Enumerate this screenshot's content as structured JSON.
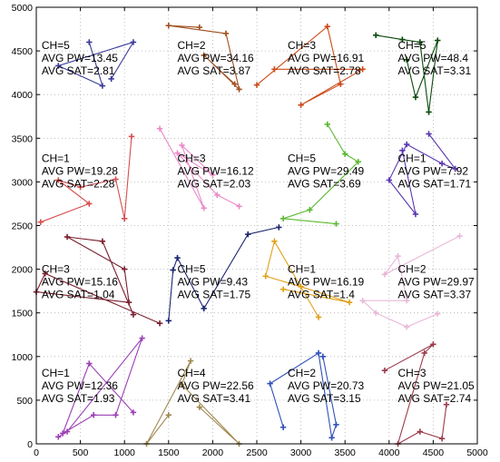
{
  "chart_data": {
    "type": "line",
    "title": "",
    "xlabel": "",
    "ylabel": "",
    "xlim": [
      0,
      5000
    ],
    "ylim": [
      0,
      5000
    ],
    "xticks": [
      "0",
      "500",
      "1000",
      "1500",
      "2000",
      "2500",
      "3000",
      "3500",
      "4000",
      "4500",
      "5000"
    ],
    "yticks": [
      "0",
      "500",
      "1000",
      "1500",
      "2000",
      "2500",
      "3000",
      "3500",
      "4000",
      "4500",
      "5000"
    ],
    "grid": "dotted",
    "marker": "plus",
    "series": [
      {
        "color": "#3a3a9a",
        "x": [
          850,
          1100,
          250,
          750,
          600
        ],
        "y": [
          4180,
          4600,
          4330,
          4100,
          4600
        ]
      },
      {
        "color": "#d64e4e",
        "x": [
          1080,
          1000,
          900,
          500,
          250,
          600,
          50
        ],
        "y": [
          3520,
          2580,
          3030,
          2940,
          3020,
          2750,
          2540
        ]
      },
      {
        "color": "#7a1f2e",
        "x": [
          1100,
          750,
          350,
          1000,
          1050,
          0,
          100,
          1400
        ],
        "y": [
          1480,
          2320,
          2370,
          2000,
          1620,
          1740,
          1950,
          1380
        ]
      },
      {
        "color": "#9b3fb5",
        "x": [
          250,
          350,
          1200,
          900,
          650,
          300,
          600,
          1100
        ],
        "y": [
          80,
          140,
          1210,
          330,
          330,
          120,
          920,
          360
        ]
      },
      {
        "color": "#a05020",
        "x": [
          1850,
          1500,
          2150,
          2300,
          1900,
          2250
        ],
        "y": [
          4770,
          4790,
          4700,
          4060,
          4450,
          4120
        ]
      },
      {
        "color": "#e88cc8",
        "x": [
          1400,
          1900,
          1650,
          2000,
          1600,
          2050,
          2300
        ],
        "y": [
          3610,
          2700,
          3420,
          3080,
          3330,
          2850,
          2720
        ]
      },
      {
        "color": "#1a2470",
        "x": [
          1500,
          1550,
          1600,
          1900,
          2400,
          2750
        ],
        "y": [
          1410,
          1990,
          2130,
          1550,
          2400,
          2480
        ]
      },
      {
        "color": "#a08850",
        "x": [
          1500,
          1250,
          1750,
          1650,
          2300,
          1850
        ],
        "y": [
          330,
          0,
          950,
          680,
          0,
          420
        ]
      },
      {
        "color": "#cc4a18",
        "x": [
          2500,
          3300,
          3450,
          3000,
          3700,
          2700
        ],
        "y": [
          4110,
          4780,
          4120,
          3880,
          4290,
          4290
        ]
      },
      {
        "color": "#5ab830",
        "x": [
          3300,
          3500,
          3650,
          3100,
          2800,
          3400
        ],
        "y": [
          3660,
          3320,
          3230,
          2680,
          2580,
          2520
        ]
      },
      {
        "color": "#e0a018",
        "x": [
          2800,
          3550,
          3000,
          2600,
          2700,
          3200
        ],
        "y": [
          1770,
          1620,
          1800,
          1920,
          2320,
          1450
        ]
      },
      {
        "color": "#3050b8",
        "x": [
          3250,
          3400,
          3350,
          3200,
          2650,
          2800
        ],
        "y": [
          1000,
          220,
          70,
          1040,
          690,
          190
        ]
      },
      {
        "color": "#0a4a0a",
        "x": [
          3850,
          4150,
          4350,
          4450,
          4550,
          4300,
          4200
        ],
        "y": [
          4680,
          4630,
          4600,
          3800,
          4620,
          3970,
          4400
        ]
      },
      {
        "color": "#5a38b0",
        "x": [
          4450,
          4750,
          4600,
          4200,
          4000,
          4300,
          4150
        ],
        "y": [
          3550,
          3150,
          3210,
          3430,
          3020,
          2630,
          3360
        ]
      },
      {
        "color": "#e8b8d8",
        "x": [
          4800,
          3950,
          4100,
          4200,
          3700,
          3850,
          4200,
          4550
        ],
        "y": [
          2380,
          1940,
          2150,
          1640,
          1640,
          1500,
          1340,
          1490
        ]
      },
      {
        "color": "#9a3a4a",
        "x": [
          3950,
          4500,
          4400,
          4100,
          4350,
          4600,
          4650
        ],
        "y": [
          840,
          1140,
          1040,
          0,
          140,
          60,
          450
        ]
      }
    ],
    "annotations": [
      {
        "lines": [
          "CH=5",
          "AVG PW=13.45",
          "AVG SAT=2.81"
        ],
        "x": 60,
        "y": 4520
      },
      {
        "lines": [
          "CH=2",
          "AVG PW=34.16",
          "AVG SAT=3.87"
        ],
        "x": 1600,
        "y": 4520
      },
      {
        "lines": [
          "CH=3",
          "AVG PW=16.91",
          "AVG SAT=2.78"
        ],
        "x": 2850,
        "y": 4520
      },
      {
        "lines": [
          "CH=5",
          "AVG PW=48.4",
          "AVG SAT=3.31"
        ],
        "x": 4100,
        "y": 4520
      },
      {
        "lines": [
          "CH=1",
          "AVG PW=19.28",
          "AVG SAT=2.28"
        ],
        "x": 60,
        "y": 3230
      },
      {
        "lines": [
          "CH=3",
          "AVG PW=16.12",
          "AVG SAT=2.03"
        ],
        "x": 1600,
        "y": 3230
      },
      {
        "lines": [
          "CH=5",
          "AVG PW=29.49",
          "AVG SAT=3.69"
        ],
        "x": 2850,
        "y": 3230
      },
      {
        "lines": [
          "CH=1",
          "AVG PW=7.92",
          "AVG SAT=1.71"
        ],
        "x": 4100,
        "y": 3230
      },
      {
        "lines": [
          "CH=3",
          "AVG PW=15.16",
          "AVG SAT=1.04"
        ],
        "x": 60,
        "y": 1960
      },
      {
        "lines": [
          "CH=5",
          "AVG PW=9.43",
          "AVG SAT=1.75"
        ],
        "x": 1600,
        "y": 1960
      },
      {
        "lines": [
          "CH=1",
          "AVG PW=16.19",
          "AVG SAT=1.4"
        ],
        "x": 2850,
        "y": 1960
      },
      {
        "lines": [
          "CH=2",
          "AVG PW=29.97",
          "AVG SAT=3.37"
        ],
        "x": 4100,
        "y": 1960
      },
      {
        "lines": [
          "CH=1",
          "AVG PW=12.36",
          "AVG SAT=1.93"
        ],
        "x": 60,
        "y": 770
      },
      {
        "lines": [
          "CH=4",
          "AVG PW=22.56",
          "AVG SAT=3.41"
        ],
        "x": 1600,
        "y": 770
      },
      {
        "lines": [
          "CH=2",
          "AVG PW=20.73",
          "AVG SAT=3.15"
        ],
        "x": 2850,
        "y": 770
      },
      {
        "lines": [
          "CH=3",
          "AVG PW=21.05",
          "AVG SAT=2.74"
        ],
        "x": 4100,
        "y": 770
      }
    ]
  }
}
